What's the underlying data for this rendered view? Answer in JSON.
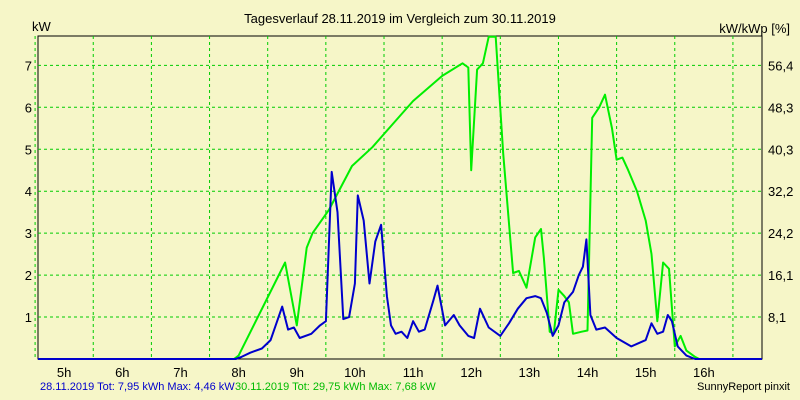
{
  "chart_data": {
    "type": "line",
    "title": "Tagesverlauf 28.11.2019 im Vergleich zum 30.11.2019",
    "ylabel_left": "kW",
    "ylabel_right": "kW/kWp [%]",
    "x_ticks": [
      "5h",
      "6h",
      "7h",
      "8h",
      "9h",
      "10h",
      "11h",
      "12h",
      "13h",
      "14h",
      "15h",
      "16h"
    ],
    "xlim": [
      4.55,
      17.0
    ],
    "ylim": [
      0,
      7.7
    ],
    "y_ticks_left": [
      1,
      2,
      3,
      4,
      5,
      6,
      7
    ],
    "y_ticks_right": [
      "8,1",
      "16,1",
      "24,2",
      "32,2",
      "40,3",
      "48,3",
      "56,4"
    ],
    "grid": true,
    "series": [
      {
        "color": "#00ee00",
        "points": [
          [
            4.55,
            0
          ],
          [
            7.92,
            0
          ],
          [
            8.0,
            0.08
          ],
          [
            8.8,
            2.3
          ],
          [
            9.0,
            0.8
          ],
          [
            9.17,
            2.65
          ],
          [
            9.27,
            3.0
          ],
          [
            9.55,
            3.55
          ],
          [
            9.95,
            4.6
          ],
          [
            10.3,
            5.05
          ],
          [
            10.65,
            5.6
          ],
          [
            11.0,
            6.15
          ],
          [
            11.5,
            6.75
          ],
          [
            11.85,
            7.05
          ],
          [
            11.95,
            6.95
          ],
          [
            12.0,
            4.5
          ],
          [
            12.1,
            6.9
          ],
          [
            12.2,
            7.05
          ],
          [
            12.3,
            7.68
          ],
          [
            12.42,
            7.68
          ],
          [
            12.55,
            4.9
          ],
          [
            12.72,
            2.05
          ],
          [
            12.82,
            2.1
          ],
          [
            12.95,
            1.7
          ],
          [
            13.1,
            2.9
          ],
          [
            13.2,
            3.1
          ],
          [
            13.25,
            2.4
          ],
          [
            13.35,
            0.65
          ],
          [
            13.42,
            0.6
          ],
          [
            13.5,
            1.65
          ],
          [
            13.6,
            1.5
          ],
          [
            13.68,
            1.35
          ],
          [
            13.75,
            0.6
          ],
          [
            13.9,
            0.65
          ],
          [
            14.0,
            0.68
          ],
          [
            14.08,
            5.75
          ],
          [
            14.2,
            6.0
          ],
          [
            14.3,
            6.3
          ],
          [
            14.42,
            5.5
          ],
          [
            14.5,
            4.75
          ],
          [
            14.6,
            4.8
          ],
          [
            14.7,
            4.5
          ],
          [
            14.85,
            4.0
          ],
          [
            15.0,
            3.3
          ],
          [
            15.1,
            2.5
          ],
          [
            15.2,
            0.9
          ],
          [
            15.3,
            2.3
          ],
          [
            15.4,
            2.15
          ],
          [
            15.5,
            0.3
          ],
          [
            15.6,
            0.55
          ],
          [
            15.7,
            0.2
          ],
          [
            15.85,
            0.05
          ],
          [
            15.92,
            0
          ],
          [
            17.0,
            0
          ]
        ]
      },
      {
        "color": "#0000cc",
        "points": [
          [
            4.55,
            0
          ],
          [
            7.95,
            0
          ],
          [
            8.05,
            0.05
          ],
          [
            8.2,
            0.15
          ],
          [
            8.4,
            0.25
          ],
          [
            8.55,
            0.45
          ],
          [
            8.75,
            1.25
          ],
          [
            8.85,
            0.7
          ],
          [
            8.95,
            0.75
          ],
          [
            9.05,
            0.5
          ],
          [
            9.25,
            0.6
          ],
          [
            9.4,
            0.8
          ],
          [
            9.5,
            0.9
          ],
          [
            9.6,
            4.46
          ],
          [
            9.7,
            3.5
          ],
          [
            9.8,
            0.95
          ],
          [
            9.9,
            1.0
          ],
          [
            10.0,
            1.8
          ],
          [
            10.05,
            3.9
          ],
          [
            10.15,
            3.3
          ],
          [
            10.25,
            1.8
          ],
          [
            10.35,
            2.8
          ],
          [
            10.45,
            3.2
          ],
          [
            10.55,
            1.5
          ],
          [
            10.62,
            0.8
          ],
          [
            10.7,
            0.6
          ],
          [
            10.8,
            0.65
          ],
          [
            10.9,
            0.5
          ],
          [
            11.0,
            0.9
          ],
          [
            11.1,
            0.65
          ],
          [
            11.2,
            0.7
          ],
          [
            11.35,
            1.4
          ],
          [
            11.42,
            1.75
          ],
          [
            11.55,
            0.8
          ],
          [
            11.7,
            1.05
          ],
          [
            11.8,
            0.8
          ],
          [
            11.95,
            0.55
          ],
          [
            12.05,
            0.5
          ],
          [
            12.15,
            1.2
          ],
          [
            12.3,
            0.75
          ],
          [
            12.5,
            0.55
          ],
          [
            12.65,
            0.85
          ],
          [
            12.8,
            1.2
          ],
          [
            12.95,
            1.45
          ],
          [
            13.1,
            1.5
          ],
          [
            13.2,
            1.45
          ],
          [
            13.3,
            1.1
          ],
          [
            13.4,
            0.55
          ],
          [
            13.5,
            0.8
          ],
          [
            13.6,
            1.35
          ],
          [
            13.75,
            1.6
          ],
          [
            13.85,
            2.0
          ],
          [
            13.92,
            2.2
          ],
          [
            13.98,
            2.85
          ],
          [
            14.05,
            1.05
          ],
          [
            14.15,
            0.7
          ],
          [
            14.3,
            0.75
          ],
          [
            14.5,
            0.5
          ],
          [
            14.75,
            0.3
          ],
          [
            15.0,
            0.45
          ],
          [
            15.1,
            0.85
          ],
          [
            15.2,
            0.6
          ],
          [
            15.3,
            0.65
          ],
          [
            15.38,
            1.05
          ],
          [
            15.45,
            0.9
          ],
          [
            15.55,
            0.3
          ],
          [
            15.7,
            0.08
          ],
          [
            15.85,
            0
          ],
          [
            17.0,
            0
          ]
        ]
      }
    ]
  },
  "footer": {
    "series1_text": "28.11.2019 Tot: 7,95 kWh Max: 4,46 kW",
    "series2_text": "30.11.2019 Tot: 29,75 kWh Max: 7,68 kW",
    "brand": "SunnyReport pinxit"
  }
}
